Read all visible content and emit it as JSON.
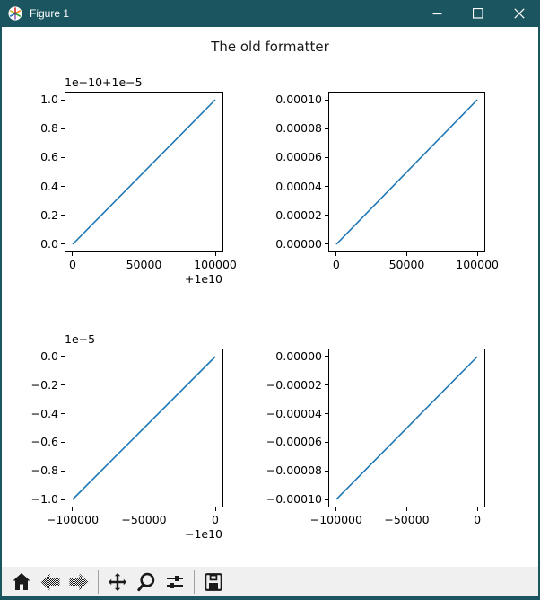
{
  "window": {
    "title": "Figure 1",
    "titlebar_color": "#1a5560",
    "controls": [
      "minimize",
      "maximize",
      "close"
    ]
  },
  "figure": {
    "title": "The old formatter",
    "line_color": "#1f77b4",
    "background": "#ffffff"
  },
  "chart_data": [
    {
      "position": "top-left",
      "type": "line",
      "x_range": [
        10000000000,
        10000100000
      ],
      "y_range": [
        1e-05,
        1.00001e-05
      ],
      "series": [
        {
          "name": "line",
          "points": [
            [
              10000000000,
              1e-05
            ],
            [
              10000100000,
              1.00001e-05
            ]
          ]
        }
      ],
      "xticks": [
        "0",
        "50000",
        "100000"
      ],
      "x_offset": "+1e10",
      "yticks": [
        "1.0",
        "0.8",
        "0.6",
        "0.4",
        "0.2",
        "0.0"
      ],
      "y_offset": "1e−10+1e−5",
      "grid": false,
      "legend": false
    },
    {
      "position": "top-right",
      "type": "line",
      "x_range": [
        0,
        100000
      ],
      "y_range": [
        0,
        0.0001
      ],
      "series": [
        {
          "name": "line",
          "points": [
            [
              0,
              0
            ],
            [
              100000,
              0.0001
            ]
          ]
        }
      ],
      "xticks": [
        "0",
        "50000",
        "100000"
      ],
      "x_offset": "",
      "yticks": [
        "0.00010",
        "0.00008",
        "0.00006",
        "0.00004",
        "0.00002",
        "0.00000"
      ],
      "y_offset": "",
      "grid": false,
      "legend": false
    },
    {
      "position": "bottom-left",
      "type": "line",
      "x_range": [
        -10000100000,
        -10000000000
      ],
      "y_range": [
        -1e-05,
        0
      ],
      "series": [
        {
          "name": "line",
          "points": [
            [
              -10000100000,
              -1e-05
            ],
            [
              -10000000000,
              0
            ]
          ]
        }
      ],
      "xticks": [
        "−100000",
        "−50000",
        "0"
      ],
      "x_offset": "−1e10",
      "yticks": [
        "0.0",
        "−0.2",
        "−0.4",
        "−0.6",
        "−0.8",
        "−1.0"
      ],
      "y_offset": "1e−5",
      "grid": false,
      "legend": false
    },
    {
      "position": "bottom-right",
      "type": "line",
      "x_range": [
        -100000,
        0
      ],
      "y_range": [
        -0.0001,
        0
      ],
      "series": [
        {
          "name": "line",
          "points": [
            [
              -100000,
              -0.0001
            ],
            [
              0,
              0
            ]
          ]
        }
      ],
      "xticks": [
        "−100000",
        "−50000",
        "0"
      ],
      "x_offset": "",
      "yticks": [
        "0.00000",
        "−0.00002",
        "−0.00004",
        "−0.00006",
        "−0.00008",
        "−0.00010"
      ],
      "y_offset": "",
      "grid": false,
      "legend": false
    }
  ],
  "toolbar": {
    "items": [
      {
        "name": "home",
        "disabled": false
      },
      {
        "name": "back",
        "disabled": true
      },
      {
        "name": "forward",
        "disabled": true
      },
      {
        "name": "separator"
      },
      {
        "name": "pan",
        "disabled": false
      },
      {
        "name": "zoom",
        "disabled": false
      },
      {
        "name": "subplots",
        "disabled": false
      },
      {
        "name": "separator"
      },
      {
        "name": "save",
        "disabled": false
      }
    ]
  }
}
